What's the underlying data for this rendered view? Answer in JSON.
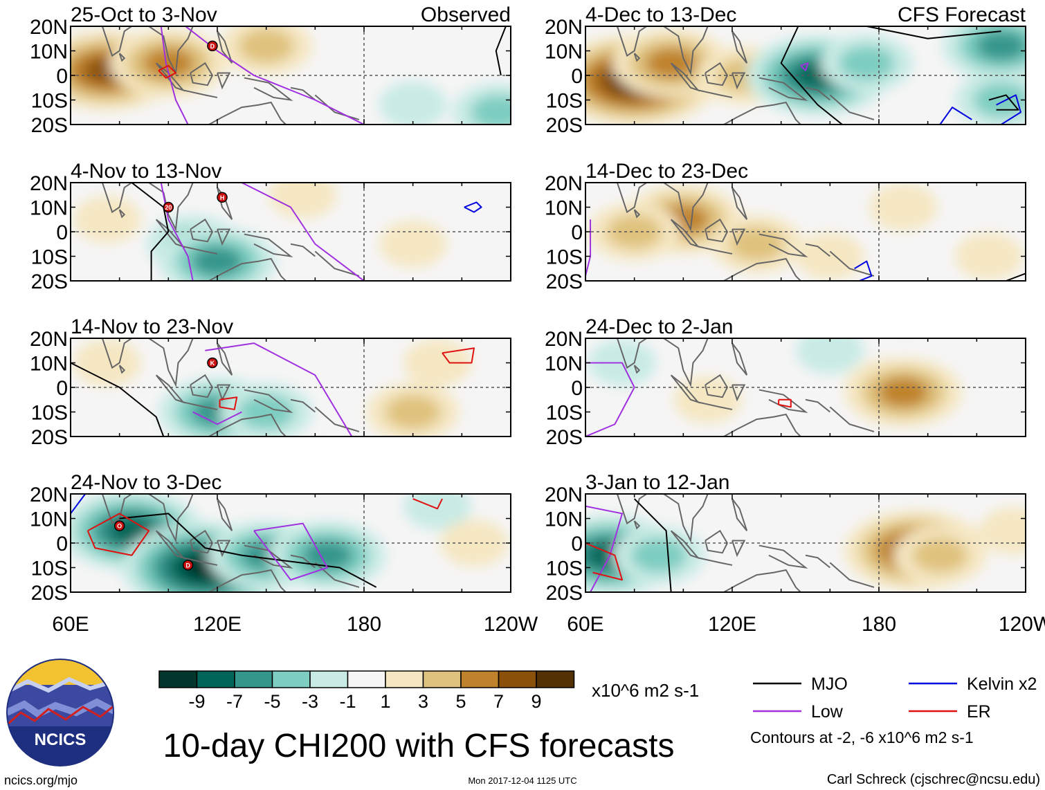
{
  "chart_data": [
    {
      "type": "heatmap",
      "title": "25-Oct to 3-Nov",
      "subtitle": "Observed",
      "lon_ticks": [
        "60E",
        "120E",
        "180",
        "120W"
      ],
      "lat_ticks": [
        "20N",
        "10N",
        "0",
        "10S",
        "20S"
      ],
      "anomaly_blobs": [
        {
          "lon": 75,
          "lat": 2,
          "level": 7
        },
        {
          "lon": 100,
          "lat": 5,
          "level": 5
        },
        {
          "lon": 140,
          "lat": 12,
          "level": 3
        },
        {
          "lon": 200,
          "lat": -12,
          "level": -1
        },
        {
          "lon": 235,
          "lat": -15,
          "level": -3
        }
      ],
      "contours": [
        {
          "kind": "Low",
          "points": [
            [
              107,
              20
            ],
            [
              120,
              10
            ],
            [
              135,
              0
            ],
            [
              160,
              -10
            ],
            [
              180,
              -20
            ]
          ]
        },
        {
          "kind": "Low",
          "points": [
            [
              97,
              20
            ],
            [
              99,
              5
            ],
            [
              103,
              -10
            ],
            [
              108,
              -20
            ]
          ]
        },
        {
          "kind": "ER",
          "points": [
            [
              96,
              2
            ],
            [
              100,
              4
            ],
            [
              103,
              1
            ],
            [
              99,
              -1
            ],
            [
              96,
              2
            ]
          ]
        },
        {
          "kind": "MJO",
          "points": [
            [
              238,
              20
            ],
            [
              234,
              10
            ],
            [
              236,
              0
            ]
          ]
        }
      ],
      "storms": [
        {
          "label": "D",
          "lon": 118,
          "lat": 12
        }
      ]
    },
    {
      "type": "heatmap",
      "title": "4-Nov to 13-Nov",
      "subtitle": "",
      "lon_ticks": [
        "60E",
        "120E",
        "180",
        "120W"
      ],
      "lat_ticks": [
        "20N",
        "10N",
        "0",
        "10S",
        "20S"
      ],
      "anomaly_blobs": [
        {
          "lon": 110,
          "lat": -5,
          "level": -3
        },
        {
          "lon": 120,
          "lat": -12,
          "level": -5
        },
        {
          "lon": 75,
          "lat": 5,
          "level": 1
        },
        {
          "lon": 155,
          "lat": 15,
          "level": 1
        },
        {
          "lon": 200,
          "lat": -5,
          "level": 1
        }
      ],
      "contours": [
        {
          "kind": "MJO",
          "points": [
            [
              85,
              20
            ],
            [
              98,
              10
            ],
            [
              100,
              0
            ],
            [
              93,
              -8
            ],
            [
              93,
              -20
            ]
          ]
        },
        {
          "kind": "Low",
          "points": [
            [
              97,
              20
            ],
            [
              100,
              5
            ],
            [
              108,
              -10
            ],
            [
              110,
              -20
            ]
          ]
        },
        {
          "kind": "Low",
          "points": [
            [
              130,
              20
            ],
            [
              150,
              10
            ],
            [
              160,
              -5
            ],
            [
              180,
              -20
            ]
          ]
        },
        {
          "kind": "Kelvin",
          "points": [
            [
              221,
              10
            ],
            [
              226,
              12
            ],
            [
              228,
              10
            ],
            [
              225,
              8
            ],
            [
              221,
              10
            ]
          ]
        }
      ],
      "storms": [
        {
          "label": "20",
          "lon": 100,
          "lat": 10
        },
        {
          "label": "H",
          "lon": 122,
          "lat": 14
        }
      ]
    },
    {
      "type": "heatmap",
      "title": "14-Nov to 23-Nov",
      "subtitle": "",
      "lon_ticks": [
        "60E",
        "120E",
        "180",
        "120W"
      ],
      "lat_ticks": [
        "20N",
        "10N",
        "0",
        "10S",
        "20S"
      ],
      "anomaly_blobs": [
        {
          "lon": 120,
          "lat": -10,
          "level": -5
        },
        {
          "lon": 140,
          "lat": -10,
          "level": -3
        },
        {
          "lon": 75,
          "lat": 10,
          "level": 1
        },
        {
          "lon": 200,
          "lat": -10,
          "level": 3
        },
        {
          "lon": 210,
          "lat": 10,
          "level": 1
        }
      ],
      "contours": [
        {
          "kind": "MJO",
          "points": [
            [
              60,
              10
            ],
            [
              80,
              0
            ],
            [
              95,
              -12
            ],
            [
              98,
              -20
            ]
          ]
        },
        {
          "kind": "Low",
          "points": [
            [
              115,
              15
            ],
            [
              135,
              18
            ],
            [
              160,
              5
            ],
            [
              175,
              -20
            ]
          ]
        },
        {
          "kind": "Low",
          "points": [
            [
              110,
              -10
            ],
            [
              120,
              -15
            ],
            [
              130,
              -10
            ]
          ]
        },
        {
          "kind": "ER",
          "points": [
            [
              121,
              -5
            ],
            [
              128,
              -4
            ],
            [
              127,
              -9
            ],
            [
              121,
              -8
            ],
            [
              121,
              -5
            ]
          ]
        },
        {
          "kind": "ER",
          "points": [
            [
              212,
              14
            ],
            [
              225,
              16
            ],
            [
              224,
              10
            ],
            [
              215,
              10
            ],
            [
              212,
              14
            ]
          ]
        }
      ],
      "storms": [
        {
          "label": "K",
          "lon": 118,
          "lat": 10
        }
      ]
    },
    {
      "type": "heatmap",
      "title": "24-Nov to 3-Dec",
      "subtitle": "",
      "lon_ticks": [
        "60E",
        "120E",
        "180",
        "120W"
      ],
      "lat_ticks": [
        "20N",
        "10N",
        "0",
        "10S",
        "20S"
      ],
      "anomaly_blobs": [
        {
          "lon": 85,
          "lat": 5,
          "level": -7
        },
        {
          "lon": 115,
          "lat": -10,
          "level": -9
        },
        {
          "lon": 140,
          "lat": -5,
          "level": -5
        },
        {
          "lon": 165,
          "lat": -5,
          "level": -5
        },
        {
          "lon": 210,
          "lat": 15,
          "level": -1
        },
        {
          "lon": 225,
          "lat": 0,
          "level": 1
        }
      ],
      "contours": [
        {
          "kind": "MJO",
          "points": [
            [
              80,
              10
            ],
            [
              100,
              12
            ],
            [
              115,
              -2
            ],
            [
              130,
              -5
            ],
            [
              170,
              -10
            ],
            [
              185,
              -18
            ]
          ]
        },
        {
          "kind": "ER",
          "points": [
            [
              67,
              5
            ],
            [
              80,
              12
            ],
            [
              92,
              5
            ],
            [
              85,
              -5
            ],
            [
              70,
              -2
            ],
            [
              67,
              5
            ]
          ]
        },
        {
          "kind": "Low",
          "points": [
            [
              135,
              5
            ],
            [
              155,
              8
            ],
            [
              165,
              -10
            ],
            [
              150,
              -15
            ],
            [
              135,
              5
            ]
          ]
        },
        {
          "kind": "Kelvin",
          "points": [
            [
              60,
              12
            ],
            [
              66,
              20
            ]
          ]
        },
        {
          "kind": "ER",
          "points": [
            [
              200,
              18
            ],
            [
              210,
              14
            ],
            [
              212,
              18
            ]
          ]
        }
      ],
      "storms": [
        {
          "label": "O",
          "lon": 80,
          "lat": 7
        },
        {
          "label": "D",
          "lon": 108,
          "lat": -9
        }
      ]
    },
    {
      "type": "heatmap",
      "title": "4-Dec to 13-Dec",
      "subtitle": "CFS Forecast",
      "lon_ticks": [
        "60E",
        "120E",
        "180",
        "120W"
      ],
      "lat_ticks": [
        "20N",
        "10N",
        "0",
        "10S",
        "20S"
      ],
      "anomaly_blobs": [
        {
          "lon": 80,
          "lat": -2,
          "level": 9
        },
        {
          "lon": 95,
          "lat": 5,
          "level": 5
        },
        {
          "lon": 125,
          "lat": 0,
          "level": 3
        },
        {
          "lon": 155,
          "lat": 0,
          "level": -7
        },
        {
          "lon": 175,
          "lat": 5,
          "level": -3
        },
        {
          "lon": 230,
          "lat": 12,
          "level": -5
        },
        {
          "lon": 230,
          "lat": -10,
          "level": -3
        }
      ],
      "contours": [
        {
          "kind": "MJO",
          "points": [
            [
              147,
              20
            ],
            [
              140,
              5
            ],
            [
              155,
              -12
            ],
            [
              165,
              -20
            ]
          ]
        },
        {
          "kind": "MJO",
          "points": [
            [
              175,
              20
            ],
            [
              200,
              15
            ],
            [
              230,
              18
            ]
          ]
        },
        {
          "kind": "Low",
          "points": [
            [
              148,
              4
            ],
            [
              151,
              5
            ],
            [
              150,
              2
            ],
            [
              148,
              4
            ]
          ]
        },
        {
          "kind": "Kelvin",
          "points": [
            [
              205,
              -20
            ],
            [
              210,
              -13
            ],
            [
              218,
              -18
            ]
          ]
        },
        {
          "kind": "Kelvin",
          "points": [
            [
              228,
              -12
            ],
            [
              236,
              -8
            ],
            [
              238,
              -15
            ],
            [
              230,
              -20
            ]
          ]
        },
        {
          "kind": "MJO",
          "points": [
            [
              225,
              -10
            ],
            [
              232,
              -8
            ],
            [
              237,
              -14
            ],
            [
              228,
              -14
            ]
          ]
        }
      ],
      "storms": []
    },
    {
      "type": "heatmap",
      "title": "14-Dec to 23-Dec",
      "subtitle": "",
      "lon_ticks": [
        "60E",
        "120E",
        "180",
        "120W"
      ],
      "lat_ticks": [
        "20N",
        "10N",
        "0",
        "10S",
        "20S"
      ],
      "anomaly_blobs": [
        {
          "lon": 100,
          "lat": 5,
          "level": 5
        },
        {
          "lon": 80,
          "lat": 0,
          "level": 3
        },
        {
          "lon": 130,
          "lat": -5,
          "level": 3
        },
        {
          "lon": 160,
          "lat": -10,
          "level": 1
        },
        {
          "lon": 190,
          "lat": 10,
          "level": 1
        },
        {
          "lon": 225,
          "lat": -10,
          "level": 1
        }
      ],
      "contours": [
        {
          "kind": "Low",
          "points": [
            [
              62,
              5
            ],
            [
              62,
              -10
            ],
            [
              60,
              -18
            ]
          ]
        },
        {
          "kind": "Kelvin",
          "points": [
            [
              170,
              -15
            ],
            [
              175,
              -12
            ],
            [
              177,
              -18
            ],
            [
              172,
              -20
            ]
          ]
        },
        {
          "kind": "MJO",
          "points": [
            [
              232,
              -20
            ],
            [
              240,
              -17
            ]
          ]
        }
      ],
      "storms": []
    },
    {
      "type": "heatmap",
      "title": "24-Dec to 2-Jan",
      "subtitle": "",
      "lon_ticks": [
        "60E",
        "120E",
        "180",
        "120W"
      ],
      "lat_ticks": [
        "20N",
        "10N",
        "0",
        "10S",
        "20S"
      ],
      "anomaly_blobs": [
        {
          "lon": 185,
          "lat": 0,
          "level": 3
        },
        {
          "lon": 190,
          "lat": -2,
          "level": 5
        },
        {
          "lon": 110,
          "lat": -5,
          "level": 1
        },
        {
          "lon": 75,
          "lat": 10,
          "level": -1
        },
        {
          "lon": 160,
          "lat": 15,
          "level": -1
        }
      ],
      "contours": [
        {
          "kind": "Low",
          "points": [
            [
              60,
              10
            ],
            [
              75,
              10
            ],
            [
              80,
              0
            ],
            [
              72,
              -15
            ],
            [
              60,
              -20
            ]
          ]
        },
        {
          "kind": "ER",
          "points": [
            [
              139,
              -5
            ],
            [
              144,
              -5
            ],
            [
              144,
              -8
            ],
            [
              139,
              -7
            ],
            [
              139,
              -5
            ]
          ]
        }
      ],
      "storms": []
    },
    {
      "type": "heatmap",
      "title": "3-Jan to 12-Jan",
      "subtitle": "",
      "lon_ticks": [
        "60E",
        "120E",
        "180",
        "120W"
      ],
      "lat_ticks": [
        "20N",
        "10N",
        "0",
        "10S",
        "20S"
      ],
      "anomaly_blobs": [
        {
          "lon": 70,
          "lat": -5,
          "level": -7
        },
        {
          "lon": 90,
          "lat": -5,
          "level": -3
        },
        {
          "lon": 195,
          "lat": -3,
          "level": 7
        },
        {
          "lon": 205,
          "lat": -5,
          "level": 3
        },
        {
          "lon": 235,
          "lat": 5,
          "level": 1
        }
      ],
      "contours": [
        {
          "kind": "Low",
          "points": [
            [
              60,
              15
            ],
            [
              75,
              12
            ],
            [
              70,
              -5
            ],
            [
              62,
              -20
            ]
          ]
        },
        {
          "kind": "MJO",
          "points": [
            [
              80,
              18
            ],
            [
              93,
              5
            ],
            [
              95,
              -20
            ]
          ]
        },
        {
          "kind": "ER",
          "points": [
            [
              60,
              0
            ],
            [
              72,
              -5
            ],
            [
              75,
              -15
            ],
            [
              63,
              -12
            ]
          ]
        }
      ],
      "storms": []
    }
  ],
  "colorbar": {
    "colors": [
      "#00362c",
      "#016659",
      "#35968c",
      "#7ecdc1",
      "#c9ebe5",
      "#f5f5f5",
      "#f5e7c2",
      "#dfc27e",
      "#bf822c",
      "#8b510b",
      "#543005"
    ],
    "labels": [
      "-9",
      "-7",
      "-5",
      "-3",
      "-1",
      "1",
      "3",
      "5",
      "7",
      "9"
    ],
    "units": "x10^6 m2 s-1"
  },
  "legend": {
    "items": [
      {
        "label": "MJO",
        "color": "#000000"
      },
      {
        "label": "Kelvin x2",
        "color": "#0000e0"
      },
      {
        "label": "Low",
        "color": "#a030e0"
      },
      {
        "label": "ER",
        "color": "#e01010"
      }
    ],
    "contours_note": "Contours at -2, -6 x10^6 m2 s-1"
  },
  "footer": {
    "main_title": "10-day CHI200 with CFS forecasts",
    "logo_text": "NCICS",
    "site": "ncics.org/mjo",
    "timestamp": "Mon 2017-12-04 1125 UTC",
    "author": "Carl Schreck (cjschrec@ncsu.edu)"
  }
}
